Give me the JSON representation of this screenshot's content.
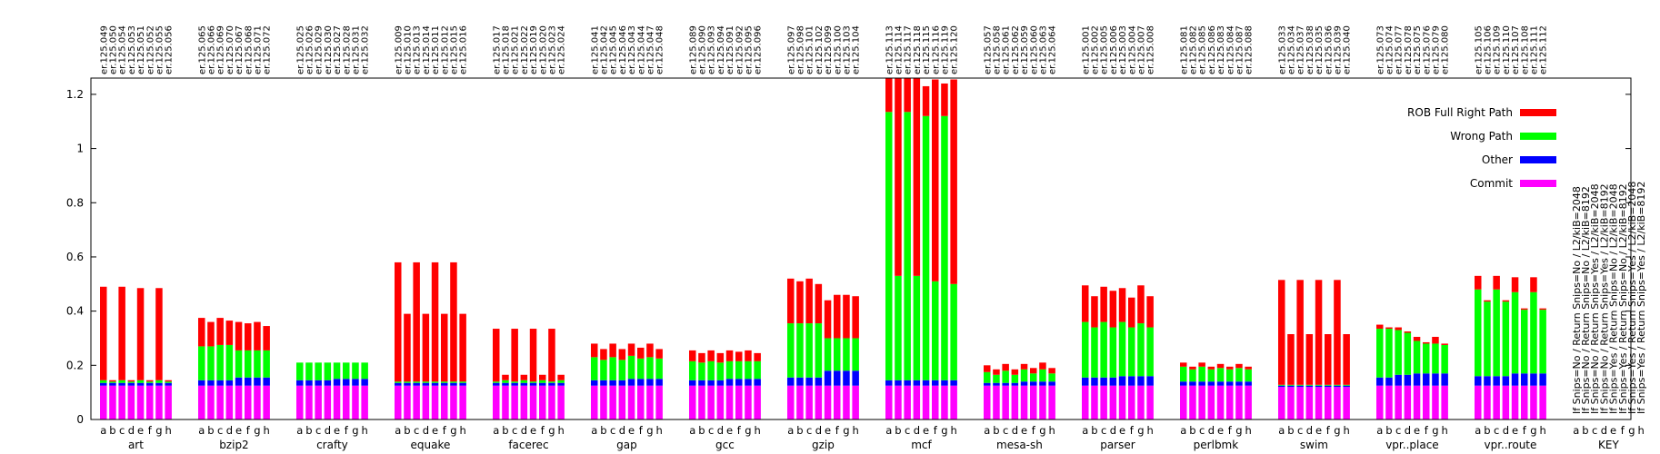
{
  "chart_data": {
    "type": "bar",
    "stacked": true,
    "ylim": [
      0,
      1.26
    ],
    "yticks": [
      0,
      0.2,
      0.4,
      0.6,
      0.8,
      1,
      1.2
    ],
    "ytick_labels": [
      "0",
      "0.2",
      "0.4",
      "0.6",
      "0.8",
      "1",
      "1.2"
    ],
    "grid": false,
    "legend_position": "top-right",
    "series": [
      {
        "key": "commit",
        "name": "Commit",
        "color": "#ff00ff"
      },
      {
        "key": "other",
        "name": "Other",
        "color": "#0000ff"
      },
      {
        "key": "wrong",
        "name": "Wrong Path",
        "color": "#00ff00"
      },
      {
        "key": "rob",
        "name": "ROB Full Right Path",
        "color": "#ff0000"
      }
    ],
    "subcategories": [
      "a",
      "b",
      "c",
      "d",
      "e",
      "f",
      "g",
      "h"
    ],
    "groups": [
      {
        "name": "art",
        "runs": [
          "er.125.049",
          "er.125.050",
          "er.125.054",
          "er.125.053",
          "er.125.051",
          "er.125.052",
          "er.125.055",
          "er.125.056"
        ],
        "commit": [
          0.125,
          0.125,
          0.125,
          0.125,
          0.125,
          0.125,
          0.125,
          0.125
        ],
        "other": [
          0.01,
          0.01,
          0.01,
          0.01,
          0.01,
          0.01,
          0.01,
          0.01
        ],
        "wrong": [
          0.01,
          0.005,
          0.01,
          0.005,
          0.01,
          0.005,
          0.01,
          0.005
        ],
        "rob": [
          0.345,
          0.005,
          0.345,
          0.005,
          0.34,
          0.005,
          0.34,
          0.005
        ]
      },
      {
        "name": "bzip2",
        "runs": [
          "er.125.065",
          "er.125.066",
          "er.125.069",
          "er.125.070",
          "er.125.067",
          "er.125.068",
          "er.125.071",
          "er.125.072"
        ],
        "commit": [
          0.125,
          0.125,
          0.125,
          0.125,
          0.125,
          0.125,
          0.125,
          0.125
        ],
        "other": [
          0.02,
          0.02,
          0.02,
          0.02,
          0.03,
          0.03,
          0.03,
          0.03
        ],
        "wrong": [
          0.125,
          0.125,
          0.13,
          0.13,
          0.1,
          0.1,
          0.1,
          0.1
        ],
        "rob": [
          0.105,
          0.09,
          0.1,
          0.09,
          0.105,
          0.1,
          0.105,
          0.09
        ]
      },
      {
        "name": "crafty",
        "runs": [
          "er.125.025",
          "er.125.026",
          "er.125.029",
          "er.125.030",
          "er.125.027",
          "er.125.028",
          "er.125.031",
          "er.125.032"
        ],
        "commit": [
          0.125,
          0.125,
          0.125,
          0.125,
          0.125,
          0.125,
          0.125,
          0.125
        ],
        "other": [
          0.02,
          0.02,
          0.02,
          0.02,
          0.025,
          0.025,
          0.025,
          0.025
        ],
        "wrong": [
          0.065,
          0.065,
          0.065,
          0.065,
          0.06,
          0.06,
          0.06,
          0.06
        ],
        "rob": [
          0,
          0,
          0,
          0,
          0,
          0,
          0,
          0
        ]
      },
      {
        "name": "equake",
        "runs": [
          "er.125.009",
          "er.125.010",
          "er.125.013",
          "er.125.014",
          "er.125.011",
          "er.125.012",
          "er.125.015",
          "er.125.016"
        ],
        "commit": [
          0.125,
          0.125,
          0.125,
          0.125,
          0.125,
          0.125,
          0.125,
          0.125
        ],
        "other": [
          0.01,
          0.01,
          0.01,
          0.01,
          0.01,
          0.01,
          0.01,
          0.01
        ],
        "wrong": [
          0.005,
          0.005,
          0.005,
          0.005,
          0.005,
          0.005,
          0.005,
          0.005
        ],
        "rob": [
          0.44,
          0.25,
          0.44,
          0.25,
          0.44,
          0.25,
          0.44,
          0.25
        ]
      },
      {
        "name": "facerec",
        "runs": [
          "er.125.017",
          "er.125.018",
          "er.125.021",
          "er.125.022",
          "er.125.019",
          "er.125.020",
          "er.125.023",
          "er.125.024"
        ],
        "commit": [
          0.125,
          0.125,
          0.125,
          0.125,
          0.125,
          0.125,
          0.125,
          0.125
        ],
        "other": [
          0.01,
          0.01,
          0.01,
          0.01,
          0.01,
          0.01,
          0.01,
          0.01
        ],
        "wrong": [
          0.005,
          0.01,
          0.005,
          0.01,
          0.005,
          0.01,
          0.005,
          0.01
        ],
        "rob": [
          0.195,
          0.02,
          0.195,
          0.02,
          0.195,
          0.02,
          0.195,
          0.02
        ]
      },
      {
        "name": "gap",
        "runs": [
          "er.125.041",
          "er.125.042",
          "er.125.045",
          "er.125.046",
          "er.125.043",
          "er.125.044",
          "er.125.047",
          "er.125.048"
        ],
        "commit": [
          0.125,
          0.125,
          0.125,
          0.125,
          0.125,
          0.125,
          0.125,
          0.125
        ],
        "other": [
          0.02,
          0.02,
          0.02,
          0.02,
          0.025,
          0.025,
          0.025,
          0.025
        ],
        "wrong": [
          0.085,
          0.075,
          0.085,
          0.075,
          0.085,
          0.075,
          0.08,
          0.075
        ],
        "rob": [
          0.05,
          0.04,
          0.05,
          0.04,
          0.045,
          0.04,
          0.05,
          0.035
        ]
      },
      {
        "name": "gcc",
        "runs": [
          "er.125.089",
          "er.125.090",
          "er.125.093",
          "er.125.094",
          "er.125.091",
          "er.125.092",
          "er.125.095",
          "er.125.096"
        ],
        "commit": [
          0.125,
          0.125,
          0.125,
          0.125,
          0.125,
          0.125,
          0.125,
          0.125
        ],
        "other": [
          0.02,
          0.02,
          0.02,
          0.02,
          0.025,
          0.025,
          0.025,
          0.025
        ],
        "wrong": [
          0.07,
          0.065,
          0.07,
          0.065,
          0.065,
          0.065,
          0.065,
          0.065
        ],
        "rob": [
          0.04,
          0.035,
          0.04,
          0.035,
          0.04,
          0.035,
          0.04,
          0.03
        ]
      },
      {
        "name": "gzip",
        "runs": [
          "er.125.097",
          "er.125.098",
          "er.125.101",
          "er.125.102",
          "er.125.099",
          "er.125.100",
          "er.125.103",
          "er.125.104"
        ],
        "commit": [
          0.125,
          0.125,
          0.125,
          0.125,
          0.125,
          0.125,
          0.125,
          0.125
        ],
        "other": [
          0.03,
          0.03,
          0.03,
          0.03,
          0.055,
          0.055,
          0.055,
          0.055
        ],
        "wrong": [
          0.2,
          0.2,
          0.2,
          0.2,
          0.12,
          0.12,
          0.12,
          0.12
        ],
        "rob": [
          0.165,
          0.155,
          0.165,
          0.145,
          0.14,
          0.16,
          0.16,
          0.155
        ]
      },
      {
        "name": "mcf",
        "runs": [
          "er.125.113",
          "er.125.114",
          "er.125.117",
          "er.125.118",
          "er.125.115",
          "er.125.116",
          "er.125.119",
          "er.125.120"
        ],
        "commit": [
          0.125,
          0.125,
          0.125,
          0.125,
          0.125,
          0.125,
          0.125,
          0.125
        ],
        "other": [
          0.02,
          0.02,
          0.02,
          0.02,
          0.02,
          0.02,
          0.02,
          0.02
        ],
        "wrong": [
          0.99,
          0.385,
          0.99,
          0.385,
          0.975,
          0.365,
          0.975,
          0.355
        ],
        "rob": [
          0.125,
          0.73,
          0.125,
          0.73,
          0.11,
          0.745,
          0.12,
          0.755
        ]
      },
      {
        "name": "mesa-sh",
        "runs": [
          "er.125.057",
          "er.125.058",
          "er.125.061",
          "er.125.062",
          "er.125.059",
          "er.125.060",
          "er.125.063",
          "er.125.064"
        ],
        "commit": [
          0.125,
          0.125,
          0.125,
          0.125,
          0.125,
          0.125,
          0.125,
          0.125
        ],
        "other": [
          0.01,
          0.01,
          0.01,
          0.01,
          0.015,
          0.015,
          0.015,
          0.015
        ],
        "wrong": [
          0.04,
          0.03,
          0.045,
          0.03,
          0.045,
          0.03,
          0.045,
          0.03
        ],
        "rob": [
          0.025,
          0.02,
          0.025,
          0.02,
          0.02,
          0.02,
          0.025,
          0.02
        ]
      },
      {
        "name": "parser",
        "runs": [
          "er.125.001",
          "er.125.002",
          "er.125.005",
          "er.125.006",
          "er.125.003",
          "er.125.004",
          "er.125.007",
          "er.125.008"
        ],
        "commit": [
          0.125,
          0.125,
          0.125,
          0.125,
          0.125,
          0.125,
          0.125,
          0.125
        ],
        "other": [
          0.03,
          0.03,
          0.03,
          0.03,
          0.035,
          0.035,
          0.035,
          0.035
        ],
        "wrong": [
          0.205,
          0.185,
          0.205,
          0.185,
          0.2,
          0.18,
          0.195,
          0.18
        ],
        "rob": [
          0.135,
          0.115,
          0.13,
          0.135,
          0.125,
          0.11,
          0.14,
          0.115
        ]
      },
      {
        "name": "perlbmk",
        "runs": [
          "er.125.081",
          "er.125.082",
          "er.125.085",
          "er.125.086",
          "er.125.083",
          "er.125.084",
          "er.125.087",
          "er.125.088"
        ],
        "commit": [
          0.125,
          0.125,
          0.125,
          0.125,
          0.125,
          0.125,
          0.125,
          0.125
        ],
        "other": [
          0.015,
          0.015,
          0.015,
          0.015,
          0.015,
          0.015,
          0.015,
          0.015
        ],
        "wrong": [
          0.055,
          0.045,
          0.055,
          0.045,
          0.05,
          0.045,
          0.05,
          0.045
        ],
        "rob": [
          0.015,
          0.01,
          0.015,
          0.01,
          0.015,
          0.01,
          0.015,
          0.01
        ]
      },
      {
        "name": "swim",
        "runs": [
          "er.125.033",
          "er.125.034",
          "er.125.037",
          "er.125.038",
          "er.125.035",
          "er.125.036",
          "er.125.039",
          "er.125.040"
        ],
        "commit": [
          0.12,
          0.12,
          0.12,
          0.12,
          0.12,
          0.12,
          0.12,
          0.12
        ],
        "other": [
          0.005,
          0.005,
          0.005,
          0.005,
          0.005,
          0.005,
          0.005,
          0.005
        ],
        "wrong": [
          0.003,
          0.003,
          0.003,
          0.003,
          0.003,
          0.003,
          0.003,
          0.003
        ],
        "rob": [
          0.387,
          0.187,
          0.387,
          0.187,
          0.387,
          0.187,
          0.387,
          0.187
        ]
      },
      {
        "name": "vpr..place",
        "runs": [
          "er.125.073",
          "er.125.074",
          "er.125.077",
          "er.125.078",
          "er.125.075",
          "er.125.076",
          "er.125.079",
          "er.125.080"
        ],
        "commit": [
          0.125,
          0.125,
          0.125,
          0.125,
          0.125,
          0.125,
          0.125,
          0.125
        ],
        "other": [
          0.03,
          0.03,
          0.04,
          0.04,
          0.045,
          0.045,
          0.045,
          0.045
        ],
        "wrong": [
          0.18,
          0.18,
          0.165,
          0.155,
          0.12,
          0.11,
          0.11,
          0.105
        ],
        "rob": [
          0.015,
          0.005,
          0.01,
          0.005,
          0.015,
          0.005,
          0.025,
          0.005
        ]
      },
      {
        "name": "vpr..route",
        "runs": [
          "er.125.105",
          "er.125.106",
          "er.125.109",
          "er.125.110",
          "er.125.107",
          "er.125.108",
          "er.125.111",
          "er.125.112"
        ],
        "commit": [
          0.125,
          0.125,
          0.125,
          0.125,
          0.125,
          0.125,
          0.125,
          0.125
        ],
        "other": [
          0.035,
          0.035,
          0.035,
          0.035,
          0.045,
          0.045,
          0.045,
          0.045
        ],
        "wrong": [
          0.32,
          0.275,
          0.32,
          0.275,
          0.3,
          0.235,
          0.3,
          0.235
        ],
        "rob": [
          0.05,
          0.005,
          0.05,
          0.005,
          0.055,
          0.005,
          0.055,
          0.005
        ]
      }
    ],
    "key": {
      "name": "KEY",
      "entries": [
        "If Snips=No / Return Snips=No / L2/kiB=2048",
        "If Snips=No / Return Snips=No / L2/kiB=8192",
        "If Snips=No / Return Snips=Yes / L2/kiB=2048",
        "If Snips=No / Return Snips=Yes / L2/kiB=8192",
        "If Snips=Yes / Return Snips=No / L2/kiB=2048",
        "If Snips=Yes / Return Snips=No / L2/kiB=8192",
        "If Snips=Yes / Return Snips=Yes / L2/kiB=2048",
        "If Snips=Yes / Return Snips=Yes / L2/kiB=8192"
      ]
    }
  }
}
